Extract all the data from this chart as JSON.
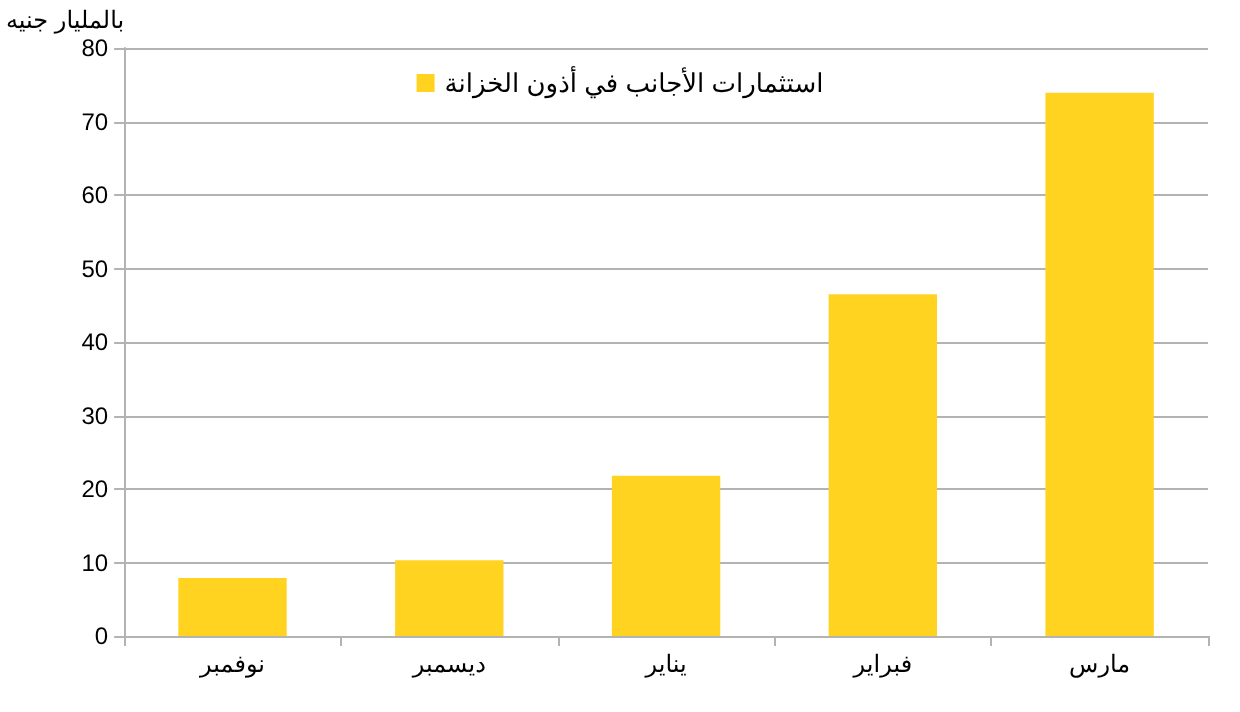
{
  "chart_data": {
    "type": "bar",
    "ylabel": "بالمليار جنيه",
    "categories": [
      "نوفمبر",
      "ديسمبر",
      "يناير",
      "فبراير",
      "مارس"
    ],
    "series": [
      {
        "name": "استثمارات الأجانب في أذون الخزانة",
        "color": "#ffd320",
        "values": [
          7.9,
          10.3,
          21.8,
          46.5,
          73.9
        ]
      }
    ],
    "ylim": [
      0,
      80
    ],
    "yticks": [
      0,
      10,
      20,
      30,
      40,
      50,
      60,
      70,
      80
    ],
    "grid": "y",
    "legend": "top"
  }
}
